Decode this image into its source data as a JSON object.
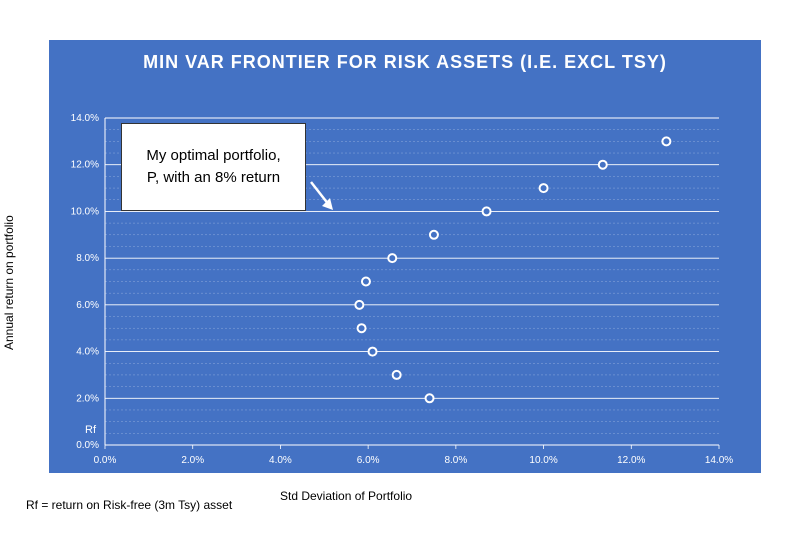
{
  "chart_data": {
    "type": "scatter",
    "title": "MIN VAR FRONTIER FOR RISK ASSETS (I.E. EXCL TSY)",
    "xlabel": "Std Deviation of Portfolio",
    "ylabel": "Annual return on portfolio",
    "xlim": [
      0,
      14
    ],
    "ylim": [
      0,
      14
    ],
    "x_ticks": [
      "0.0%",
      "2.0%",
      "4.0%",
      "6.0%",
      "8.0%",
      "10.0%",
      "12.0%",
      "14.0%"
    ],
    "y_ticks": [
      "0.0%",
      "2.0%",
      "4.0%",
      "6.0%",
      "8.0%",
      "10.0%",
      "12.0%",
      "14.0%"
    ],
    "grid": true,
    "points": [
      {
        "x": 7.4,
        "y": 2.0
      },
      {
        "x": 6.65,
        "y": 3.0
      },
      {
        "x": 6.1,
        "y": 4.0
      },
      {
        "x": 5.85,
        "y": 5.0
      },
      {
        "x": 5.8,
        "y": 6.0
      },
      {
        "x": 5.95,
        "y": 7.0
      },
      {
        "x": 6.55,
        "y": 8.0
      },
      {
        "x": 7.5,
        "y": 9.0
      },
      {
        "x": 8.7,
        "y": 10.0
      },
      {
        "x": 10.0,
        "y": 11.0
      },
      {
        "x": 11.35,
        "y": 12.0
      },
      {
        "x": 12.8,
        "y": 13.0
      }
    ],
    "rf_label": "Rf",
    "annotation": {
      "line1": "My optimal portfolio,",
      "line2": "P, with an 8% return"
    },
    "footnote": "Rf = return on Risk-free (3m Tsy) asset",
    "colors": {
      "background": "#4472c4",
      "marker_fill": "#4472c4",
      "marker_stroke": "#ffffff",
      "grid": "#ffffff"
    }
  }
}
